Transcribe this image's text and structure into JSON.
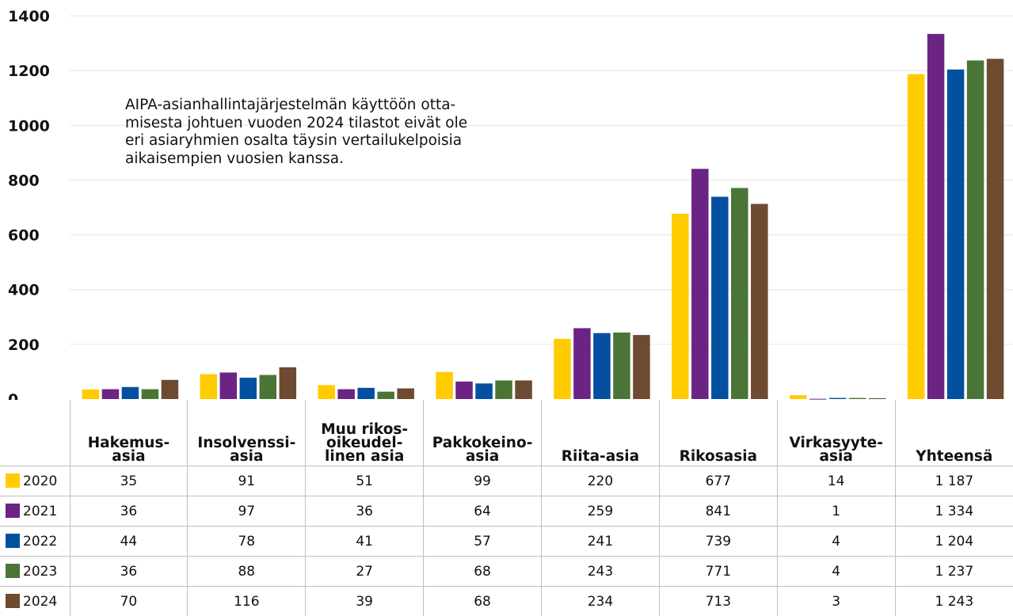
{
  "chart_data": {
    "type": "bar",
    "ylim": [
      0,
      1400
    ],
    "yticks": [
      "0",
      "200",
      "400",
      "600",
      "800",
      "1000",
      "1200",
      "1400"
    ],
    "grid": true,
    "categories": [
      "Hakemus-\nasia",
      "Insolvenssi-\nasia",
      "Muu rikos-\noikeudel-\nlinen asia",
      "Pakkokeino-\nasia",
      "Riita-asia",
      "Rikosasia",
      "Virkasyyte-\nasia",
      "Yhteensä"
    ],
    "series": [
      {
        "name": "2020",
        "color": "#ffcc00",
        "values": [
          35,
          91,
          51,
          99,
          220,
          677,
          14,
          1187
        ],
        "labels": [
          "35",
          "91",
          "51",
          "99",
          "220",
          "677",
          "14",
          "1 187"
        ]
      },
      {
        "name": "2021",
        "color": "#6b2483",
        "values": [
          36,
          97,
          36,
          64,
          259,
          841,
          1,
          1334
        ],
        "labels": [
          "36",
          "97",
          "36",
          "64",
          "259",
          "841",
          "1",
          "1 334"
        ]
      },
      {
        "name": "2022",
        "color": "#0350a0",
        "values": [
          44,
          78,
          41,
          57,
          241,
          739,
          4,
          1204
        ],
        "labels": [
          "44",
          "78",
          "41",
          "57",
          "241",
          "739",
          "4",
          "1 204"
        ]
      },
      {
        "name": "2023",
        "color": "#4a7536",
        "values": [
          36,
          88,
          27,
          68,
          243,
          771,
          4,
          1237
        ],
        "labels": [
          "36",
          "88",
          "27",
          "68",
          "243",
          "771",
          "4",
          "1 237"
        ]
      },
      {
        "name": "2024",
        "color": "#6e4a30",
        "values": [
          70,
          116,
          39,
          68,
          234,
          713,
          3,
          1243
        ],
        "labels": [
          "70",
          "116",
          "39",
          "68",
          "234",
          "713",
          "3",
          "1 243"
        ]
      }
    ]
  },
  "note": "AIPA-asianhallintajärjestelmän käyttöön otta-\nmisesta johtuen vuoden 2024 tilastot eivät ole\neri asiaryhmien osalta täysin vertailukelpoisia\naikaisempien vuosien kanssa."
}
